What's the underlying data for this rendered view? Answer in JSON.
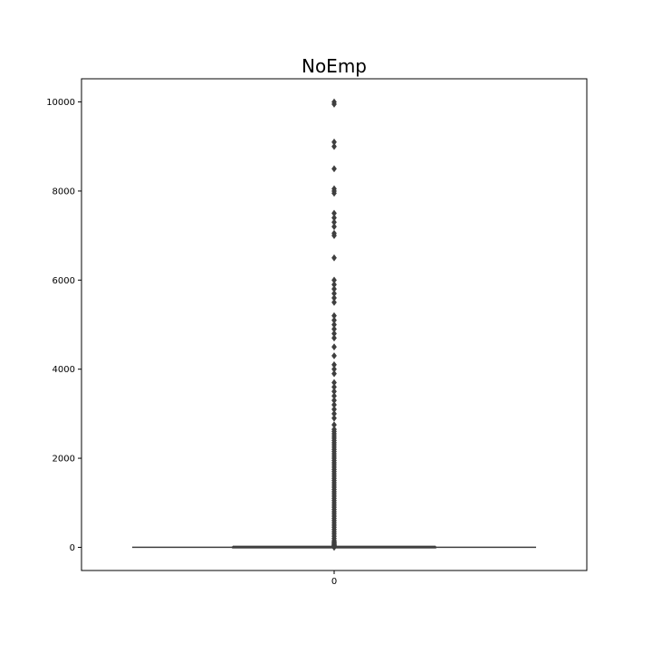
{
  "chart_data": {
    "type": "box",
    "title": "NoEmp",
    "xlabel": "",
    "ylabel": "",
    "categories": [
      "0"
    ],
    "ylim": [
      -520,
      10520
    ],
    "yticks": [
      0,
      2000,
      4000,
      6000,
      8000,
      10000
    ],
    "grid": false,
    "colors": {
      "box_fill": "#3a76ad",
      "line": "#3f3f3f",
      "outlier": "#3f3f3f",
      "frame": "#000000"
    },
    "box": {
      "min": 0,
      "q1": 2,
      "median": 4,
      "q3": 10,
      "max": 22
    },
    "outliers": [
      10000,
      9950,
      9100,
      9000,
      8500,
      8050,
      8000,
      7950,
      7500,
      7400,
      7300,
      7200,
      7050,
      7000,
      6500,
      6000,
      5900,
      5800,
      5700,
      5600,
      5500,
      5200,
      5100,
      5000,
      4900,
      4800,
      4700,
      4500,
      4300,
      4100,
      4000,
      3900,
      3700,
      3600,
      3500,
      3400,
      3300,
      3200,
      3100,
      3000,
      2900,
      2750,
      2650,
      2600,
      2550,
      2500,
      2450,
      2400,
      2350,
      2300,
      2250,
      2200,
      2150,
      2100,
      2050,
      2000,
      1950,
      1900,
      1850,
      1800,
      1750,
      1700,
      1650,
      1600,
      1550,
      1500,
      1450,
      1400,
      1350,
      1300,
      1250,
      1200,
      1150,
      1100,
      1050,
      1000,
      950,
      900,
      850,
      800,
      750,
      700,
      650,
      600,
      550,
      500,
      450,
      400,
      350,
      300,
      250,
      200,
      150,
      120,
      100,
      80,
      60,
      50,
      40,
      30,
      25,
      0
    ]
  }
}
